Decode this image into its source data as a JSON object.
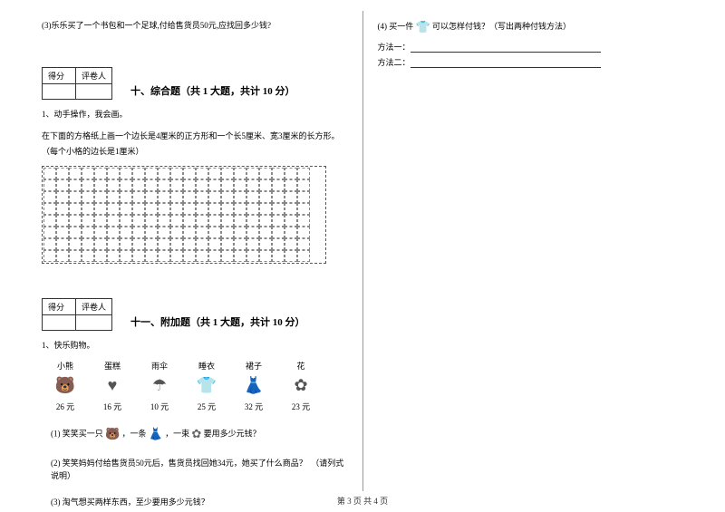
{
  "left": {
    "q3": "(3)乐乐买了一个书包和一个足球,付给售货员50元,应找回多少钱?",
    "score_labels": {
      "score": "得分",
      "reviewer": "评卷人"
    },
    "section10": {
      "title": "十、综合题（共 1 大题，共计 10 分）",
      "q1_head": "1、动手操作，我会画。",
      "q1_body": "在下面的方格纸上画一个边长是4厘米的正方形和一个长5厘米、宽3厘米的长方形。（每个小格的边长是1厘米）",
      "grid": {
        "rows": 8,
        "cols": 21
      }
    },
    "section11": {
      "title": "十一、附加题（共 1 大题，共计 10 分）",
      "q1_head": "1、快乐购物。",
      "items": [
        {
          "label": "小熊",
          "icon": "🐻",
          "price": "26 元"
        },
        {
          "label": "蛋糕",
          "icon": "♥",
          "price": "16 元"
        },
        {
          "label": "雨伞",
          "icon": "☂",
          "price": "10 元"
        },
        {
          "label": "睡衣",
          "icon": "👕",
          "price": "25 元"
        },
        {
          "label": "裙子",
          "icon": "👗",
          "price": "32 元"
        },
        {
          "label": "花",
          "icon": "✿",
          "price": "23 元"
        }
      ],
      "sub1_a": "(1) 笑笑买一只",
      "sub1_b": "，一条",
      "sub1_c": "，一束",
      "sub1_d": "要用多少元钱？",
      "sub2": "(2) 笑笑妈妈付给售货员50元后，售货员找回她34元，她买了什么商品？　（请列式说明）",
      "sub3": "(3) 淘气想买两样东西，至少要用多少元钱？"
    }
  },
  "right": {
    "q4_a": "(4) 买一件",
    "q4_b": "可以怎样付钱？（写出两种付钱方法）",
    "method1": "方法一：",
    "method2": "方法二："
  },
  "footer": "第 3 页 共 4 页"
}
